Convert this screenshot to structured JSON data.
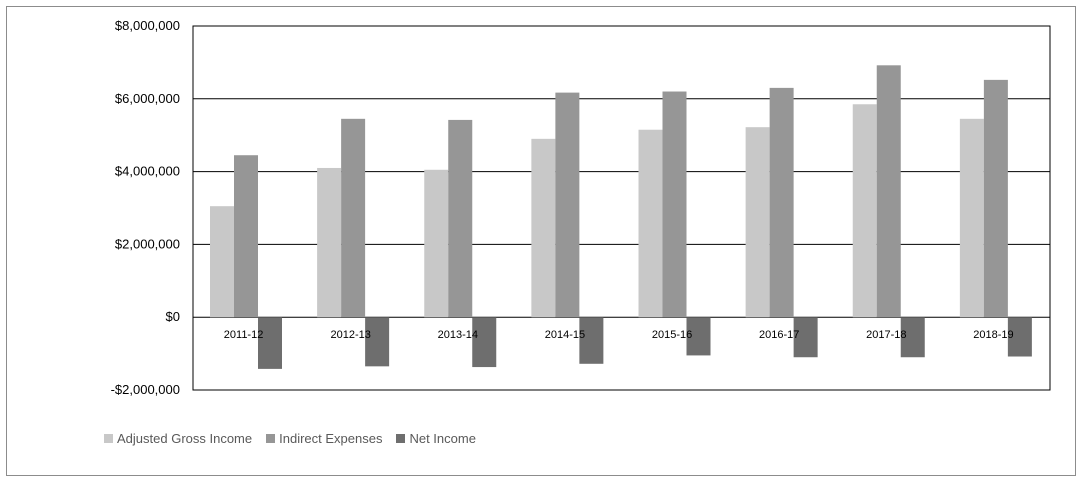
{
  "chart_data": {
    "type": "bar",
    "title": "",
    "xlabel": "",
    "ylabel": "",
    "categories": [
      "2011-12",
      "2012-13",
      "2013-14",
      "2014-15",
      "2015-16",
      "2016-17",
      "2017-18",
      "2018-19"
    ],
    "series": [
      {
        "name": "Adjusted Gross Income",
        "color": "#c8c8c8",
        "values": [
          3050000,
          4100000,
          4050000,
          4900000,
          5150000,
          5220000,
          5850000,
          5450000
        ]
      },
      {
        "name": "Indirect Expenses",
        "color": "#969696",
        "values": [
          4450000,
          5450000,
          5420000,
          6170000,
          6200000,
          6300000,
          6920000,
          6520000
        ]
      },
      {
        "name": "Net Income",
        "color": "#6e6e6e",
        "values": [
          -1420000,
          -1350000,
          -1370000,
          -1280000,
          -1050000,
          -1100000,
          -1100000,
          -1080000
        ]
      }
    ],
    "ylim": [
      -2000000,
      8000000
    ],
    "yticks": [
      8000000,
      6000000,
      4000000,
      2000000,
      0,
      -2000000
    ],
    "ytick_labels": [
      "$8,000,000",
      "$6,000,000",
      "$4,000,000",
      "$2,000,000",
      "$0",
      "-$2,000,000"
    ],
    "grid": true,
    "legend_position": "bottom-left"
  }
}
